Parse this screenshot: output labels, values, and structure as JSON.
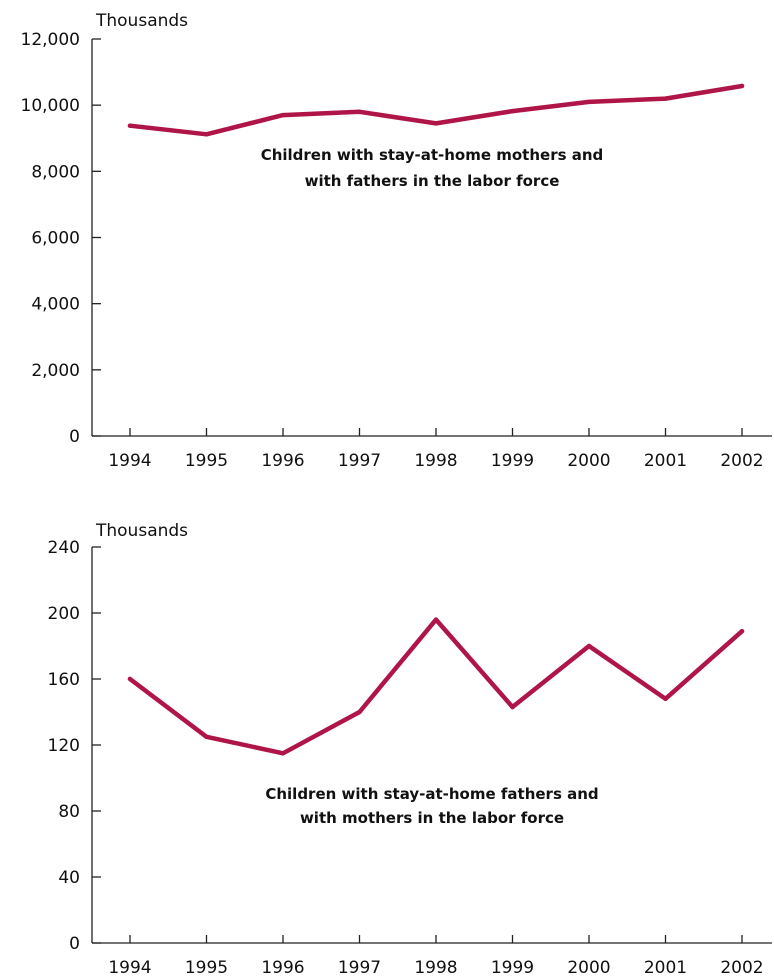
{
  "colors": {
    "line": "#b01548",
    "axis": "#222222",
    "text": "#111111"
  },
  "chart_data": [
    {
      "type": "line",
      "unit_label": "Thousands",
      "x": [
        "1994",
        "1995",
        "1996",
        "1997",
        "1998",
        "1999",
        "2000",
        "2001",
        "2002"
      ],
      "y_ticks": [
        "0",
        "2,000",
        "4,000",
        "6,000",
        "8,000",
        "10,000",
        "12,000"
      ],
      "ylim": [
        0,
        12000
      ],
      "series": [
        {
          "values": [
            9380,
            9120,
            9700,
            9800,
            9450,
            9820,
            10100,
            10200,
            10580
          ]
        }
      ],
      "annotation": [
        "Children with stay-at-home mothers and",
        "with fathers in the labor force"
      ],
      "grid": false,
      "legend": "none"
    },
    {
      "type": "line",
      "unit_label": "Thousands",
      "x": [
        "1994",
        "1995",
        "1996",
        "1997",
        "1998",
        "1999",
        "2000",
        "2001",
        "2002"
      ],
      "y_ticks": [
        "0",
        "40",
        "80",
        "120",
        "160",
        "200",
        "240"
      ],
      "ylim": [
        0,
        240
      ],
      "series": [
        {
          "values": [
            160,
            125,
            115,
            140,
            196,
            143,
            180,
            148,
            189
          ]
        }
      ],
      "annotation": [
        "Children with stay-at-home fathers and",
        "with mothers in the labor force"
      ],
      "grid": false,
      "legend": "none"
    }
  ]
}
